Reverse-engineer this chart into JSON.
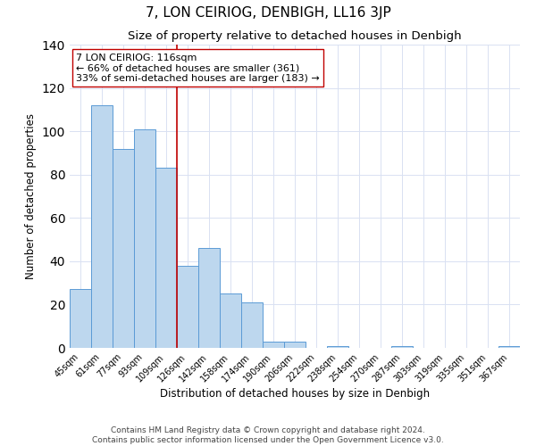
{
  "title": "7, LON CEIRIOG, DENBIGH, LL16 3JP",
  "subtitle": "Size of property relative to detached houses in Denbigh",
  "xlabel": "Distribution of detached houses by size in Denbigh",
  "ylabel": "Number of detached properties",
  "footer_line1": "Contains HM Land Registry data © Crown copyright and database right 2024.",
  "footer_line2": "Contains public sector information licensed under the Open Government Licence v3.0.",
  "bin_labels": [
    "45sqm",
    "61sqm",
    "77sqm",
    "93sqm",
    "109sqm",
    "126sqm",
    "142sqm",
    "158sqm",
    "174sqm",
    "190sqm",
    "206sqm",
    "222sqm",
    "238sqm",
    "254sqm",
    "270sqm",
    "287sqm",
    "303sqm",
    "319sqm",
    "335sqm",
    "351sqm",
    "367sqm"
  ],
  "bar_values": [
    27,
    112,
    92,
    101,
    83,
    38,
    46,
    25,
    21,
    3,
    3,
    0,
    1,
    0,
    0,
    1,
    0,
    0,
    0,
    0,
    1
  ],
  "bar_color": "#BDD7EE",
  "bar_edgecolor": "#5B9BD5",
  "vline_x": 5.0,
  "vline_color": "#C00000",
  "annotation_line1": "7 LON CEIRIOG: 116sqm",
  "annotation_line2": "← 66% of detached houses are smaller (361)",
  "annotation_line3": "33% of semi-detached houses are larger (183) →",
  "annotation_box_edgecolor": "#C00000",
  "annotation_box_facecolor": "white",
  "ylim": [
    0,
    140
  ],
  "yticks": [
    0,
    20,
    40,
    60,
    80,
    100,
    120,
    140
  ],
  "background_color": "#FFFFFF",
  "grid_color": "#D9E1F2",
  "title_fontsize": 11,
  "subtitle_fontsize": 9.5,
  "axis_label_fontsize": 8.5,
  "tick_fontsize": 7,
  "annotation_fontsize": 8,
  "footer_fontsize": 6.5
}
